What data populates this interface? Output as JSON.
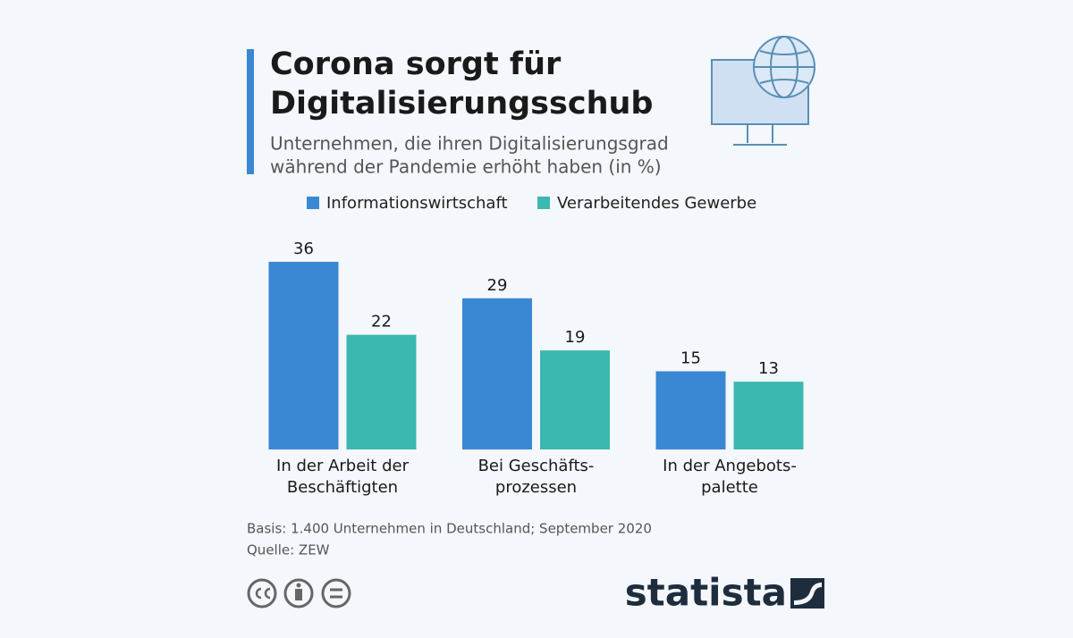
{
  "chart_data": {
    "type": "bar",
    "title": [
      "Corona sorgt für",
      "Digitalisierungsschub"
    ],
    "subtitle": [
      "Unternehmen, die ihren Digitalisierungsgrad",
      "während der Pandemie erhöht haben (in %)"
    ],
    "categories": [
      [
        "In der Arbeit der",
        "Beschäftigten"
      ],
      [
        "Bei Geschäfts-",
        "prozessen"
      ],
      [
        "In der Angebots-",
        "palette"
      ]
    ],
    "series": [
      {
        "name": "Informationswirtschaft",
        "color": "#3a87d3",
        "values": [
          36,
          29,
          15
        ]
      },
      {
        "name": "Verarbeitendes Gewerbe",
        "color": "#3bb8b0",
        "values": [
          22,
          19,
          13
        ]
      }
    ],
    "footnotes": [
      "Basis: 1.400 Unternehmen in Deutschland; September 2020",
      "Quelle: ZEW"
    ],
    "brand": "statista"
  }
}
